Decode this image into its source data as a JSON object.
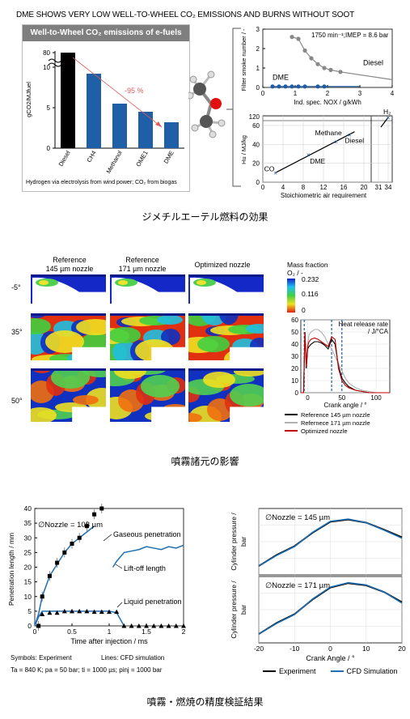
{
  "top_banner": "DME SHOWS VERY LOW WELL-TO-WHEEL CO₂ EMISSIONS AND BURNS WITHOUT SOOT",
  "captions": {
    "fig1": "ジメチルエーテル燃料の効果",
    "fig2": "噴霧諸元の影響",
    "fig3": "噴霧・燃焼の精度検証結果"
  },
  "fig1": {
    "bar_panel": {
      "header": "Well-to-Wheel CO₂ emissions of e-fuels",
      "ylabel": "gCO2/MJfuel",
      "reduction_label": "-95 %",
      "footnote": "Hydrogen via electrolysis from wind power; CO₂ from biogas",
      "header_color": "#7f7f7f",
      "arrow_color": "#e05a5a"
    },
    "smoke_panel": {
      "ylabel": "Filter smoke number / -",
      "xlabel": "Ind. spec. NOX / g/kWh",
      "condition": "1750 min⁻¹;IMEP = 8.6 bar",
      "label_diesel": "Diesel",
      "label_dme": "DME"
    },
    "hu_panel": {
      "ylabel": "Hu / MJ/kg",
      "xlabel": "Stoichiometric air requirement",
      "labels": [
        "CO",
        "DME",
        "Methane",
        "Diesel",
        "H₂"
      ]
    }
  },
  "fig2": {
    "col_titles": [
      "Reference\n145 µm nozzle",
      "Reference\n171 µm nozzle",
      "Optimized nozzle"
    ],
    "row_labels": [
      "-5°",
      "35°",
      "50°"
    ],
    "colorbar": {
      "title": "Mass fraction\nO₂ / -",
      "ticks": [
        "0.232",
        "0.116",
        "0"
      ]
    },
    "hrr": {
      "title": "Heat release rate\n/ J/°CA",
      "xlabel": "Crank angle / °",
      "legend": [
        "Reference 145 µm nozzle",
        "Refernece 171 µm nozzle",
        "Optimized nozzle"
      ],
      "colors": [
        "#000000",
        "#b0b0b0",
        "#c00000"
      ]
    }
  },
  "fig3": {
    "pen": {
      "nozzle_label": "∅Nozzle = 108 µm",
      "ylabel": "Penetration length / mm",
      "xlabel": "Time after injection / ms",
      "gaseous_label": "Gaseous penetration",
      "liftoff_label": "Lift-off length",
      "liquid_label": "Liquid penetration",
      "symbols_note": "Symbols: Experiment",
      "lines_note": "Lines: CFD simulation",
      "conditions": "Ta = 840 K; pa = 50 bar; ti = 1000 µs; pinj = 1000 bar"
    },
    "cyl": {
      "label_145": "∅Nozzle = 145 µm",
      "label_171": "∅Nozzle = 171 µm",
      "ylabel": "Cylinder pressure / bar",
      "xlabel": "Crank Angle / °",
      "legend": [
        "Experiment",
        "CFD Simulation"
      ],
      "colors": [
        "#000000",
        "#1f6fb2"
      ]
    }
  },
  "chart_data": [
    {
      "type": "bar",
      "categories": [
        "Diesel",
        "CH4",
        "Methanol",
        "OME1",
        "DME"
      ],
      "values": [
        85,
        9.2,
        5.5,
        4.5,
        3.2
      ],
      "colors": [
        "#000000",
        "#1f5fa8",
        "#1f5fa8",
        "#1f5fa8",
        "#1f5fa8"
      ],
      "yticks": [
        "0",
        "5",
        "10",
        "80"
      ],
      "ylabel": "gCO2/MJfuel",
      "broken_axis": true
    },
    {
      "type": "scatter",
      "xlabel": "Ind. spec. NOX / g/kWh",
      "ylabel": "Filter smoke number / -",
      "xlim": [
        0,
        4
      ],
      "ylim": [
        0,
        3
      ],
      "xticks": [
        "0",
        "1",
        "2",
        "3",
        "4"
      ],
      "yticks": [
        "0",
        "1",
        "2",
        "3"
      ],
      "series": [
        {
          "name": "Diesel",
          "x": [
            0.9,
            1.1,
            1.3,
            1.5,
            1.7,
            1.9,
            2.1,
            2.4
          ],
          "y": [
            2.6,
            2.5,
            1.9,
            1.5,
            1.2,
            1.0,
            0.9,
            0.8
          ],
          "fit_end": [
            4.0,
            0.4
          ]
        },
        {
          "name": "DME",
          "x": [
            0.3,
            0.5,
            0.7,
            0.9,
            1.1,
            1.3,
            1.7,
            1.9
          ],
          "y": [
            0.05,
            0.05,
            0.05,
            0.05,
            0.05,
            0.05,
            0.05,
            0.05
          ]
        }
      ]
    },
    {
      "type": "line",
      "xlabel": "Stoichiometric air requirement",
      "ylabel": "Hu / MJ/kg",
      "xticks": [
        "0",
        "4",
        "8",
        "12",
        "16",
        "20",
        "31",
        "34"
      ],
      "yticks": [
        "0",
        "20",
        "40",
        "60",
        "120"
      ],
      "points": [
        {
          "label": "CO",
          "x": 2.5,
          "y": 10
        },
        {
          "label": "DME",
          "x": 9,
          "y": 29
        },
        {
          "label": "Diesel",
          "x": 14.5,
          "y": 43
        },
        {
          "label": "Methane",
          "x": 17.2,
          "y": 50
        },
        {
          "label": "H2",
          "x": 34,
          "y": 120
        }
      ]
    },
    {
      "type": "line",
      "title": "Heat release rate / J/°CA",
      "xlabel": "Crank angle / °",
      "xlim": [
        -10,
        120
      ],
      "ylim": [
        0,
        60
      ],
      "xticks": [
        "0",
        "50",
        "100"
      ],
      "yticks": [
        "0",
        "10",
        "20",
        "30",
        "40",
        "50",
        "60"
      ],
      "x": [
        -10,
        -6,
        -4,
        -2,
        0,
        2,
        5,
        10,
        15,
        20,
        25,
        30,
        35,
        40,
        45,
        50,
        55,
        60,
        70,
        80,
        90,
        100,
        110,
        120
      ],
      "series": [
        {
          "name": "Reference 145 µm nozzle",
          "values": [
            0,
            0,
            50,
            20,
            36,
            38,
            40,
            42,
            42,
            41,
            39,
            36,
            44,
            40,
            22,
            12,
            8,
            5,
            2,
            1,
            0,
            0,
            0,
            0
          ]
        },
        {
          "name": "Refernece 171 µm nozzle",
          "values": [
            0,
            0,
            45,
            25,
            40,
            48,
            50,
            52,
            52,
            50,
            46,
            40,
            36,
            30,
            24,
            18,
            12,
            8,
            4,
            2,
            1,
            0,
            0,
            0
          ]
        },
        {
          "name": "Optimized nozzle",
          "values": [
            0,
            0,
            50,
            22,
            38,
            42,
            44,
            45,
            44,
            42,
            40,
            38,
            46,
            44,
            20,
            10,
            6,
            4,
            2,
            1,
            0,
            0,
            0,
            0
          ]
        }
      ]
    },
    {
      "type": "line",
      "xlabel": "Time after injection / ms",
      "ylabel": "Penetration length / mm",
      "xlim": [
        0,
        2
      ],
      "ylim": [
        0,
        40
      ],
      "xticks": [
        "0",
        "0.5",
        "1",
        "1.5",
        "2"
      ],
      "yticks": [
        "0",
        "5",
        "10",
        "15",
        "20",
        "25",
        "30",
        "35",
        "40"
      ],
      "experiment": {
        "gaseous": {
          "x": [
            0.05,
            0.1,
            0.2,
            0.3,
            0.4,
            0.5,
            0.6,
            0.7,
            0.8,
            0.9
          ],
          "y": [
            0,
            10,
            17,
            21.5,
            25,
            28,
            30,
            34,
            38,
            40
          ]
        },
        "liquid": {
          "x": [
            0.05,
            0.1,
            0.2,
            0.3,
            0.4,
            0.5,
            0.6,
            0.7,
            0.8,
            0.9,
            1.0,
            1.1,
            1.2,
            1.3,
            1.4,
            1.5,
            1.6,
            1.7,
            1.8,
            1.9,
            2.0
          ],
          "y": [
            0,
            4,
            4.5,
            4.5,
            5,
            5,
            5,
            5,
            4.8,
            4.8,
            4.8,
            4.8,
            0,
            0,
            0,
            0,
            0,
            0,
            0,
            0,
            0
          ]
        }
      },
      "cfd": {
        "gaseous": {
          "x": [
            0,
            0.05,
            0.1,
            0.2,
            0.3,
            0.4,
            0.5,
            0.6,
            0.7,
            0.8
          ],
          "y": [
            0,
            4,
            10,
            17,
            21,
            25,
            28,
            30,
            32,
            34
          ]
        },
        "liftoff": {
          "x": [
            1.05,
            1.1,
            1.2,
            1.3,
            1.4,
            1.5,
            1.6,
            1.7,
            1.8,
            1.9,
            2.0
          ],
          "y": [
            20,
            22,
            25,
            25.5,
            26,
            27,
            26.5,
            26,
            27,
            26.5,
            27.5
          ]
        },
        "liquid": {
          "x": [
            0,
            0.05,
            0.1,
            0.2,
            0.4,
            0.6,
            0.8,
            1.0,
            1.1,
            1.2
          ],
          "y": [
            0,
            3,
            5,
            5,
            5,
            5,
            5,
            5,
            4.5,
            0
          ]
        }
      }
    },
    {
      "type": "line",
      "ylabel": "Cylinder pressure / bar",
      "xlabel": "Crank Angle / °",
      "xlim": [
        -20,
        20
      ],
      "xticks": [
        "-20",
        "-10",
        "0",
        "10",
        "20"
      ],
      "panels": [
        {
          "name": "∅Nozzle = 145 µm",
          "x": [
            -20,
            -15,
            -10,
            -5,
            0,
            5,
            10,
            15,
            20
          ],
          "experiment": [
            60,
            85,
            105,
            135,
            160,
            165,
            158,
            142,
            125
          ],
          "cfd": [
            60,
            84,
            104,
            136,
            161,
            166,
            158,
            141,
            123
          ]
        },
        {
          "name": "∅Nozzle = 171 µm",
          "x": [
            -20,
            -15,
            -10,
            -5,
            0,
            5,
            10,
            15,
            20
          ],
          "experiment": [
            60,
            85,
            105,
            138,
            165,
            175,
            170,
            155,
            132
          ],
          "cfd": [
            60,
            84,
            104,
            139,
            166,
            176,
            171,
            155,
            130
          ]
        }
      ]
    }
  ]
}
